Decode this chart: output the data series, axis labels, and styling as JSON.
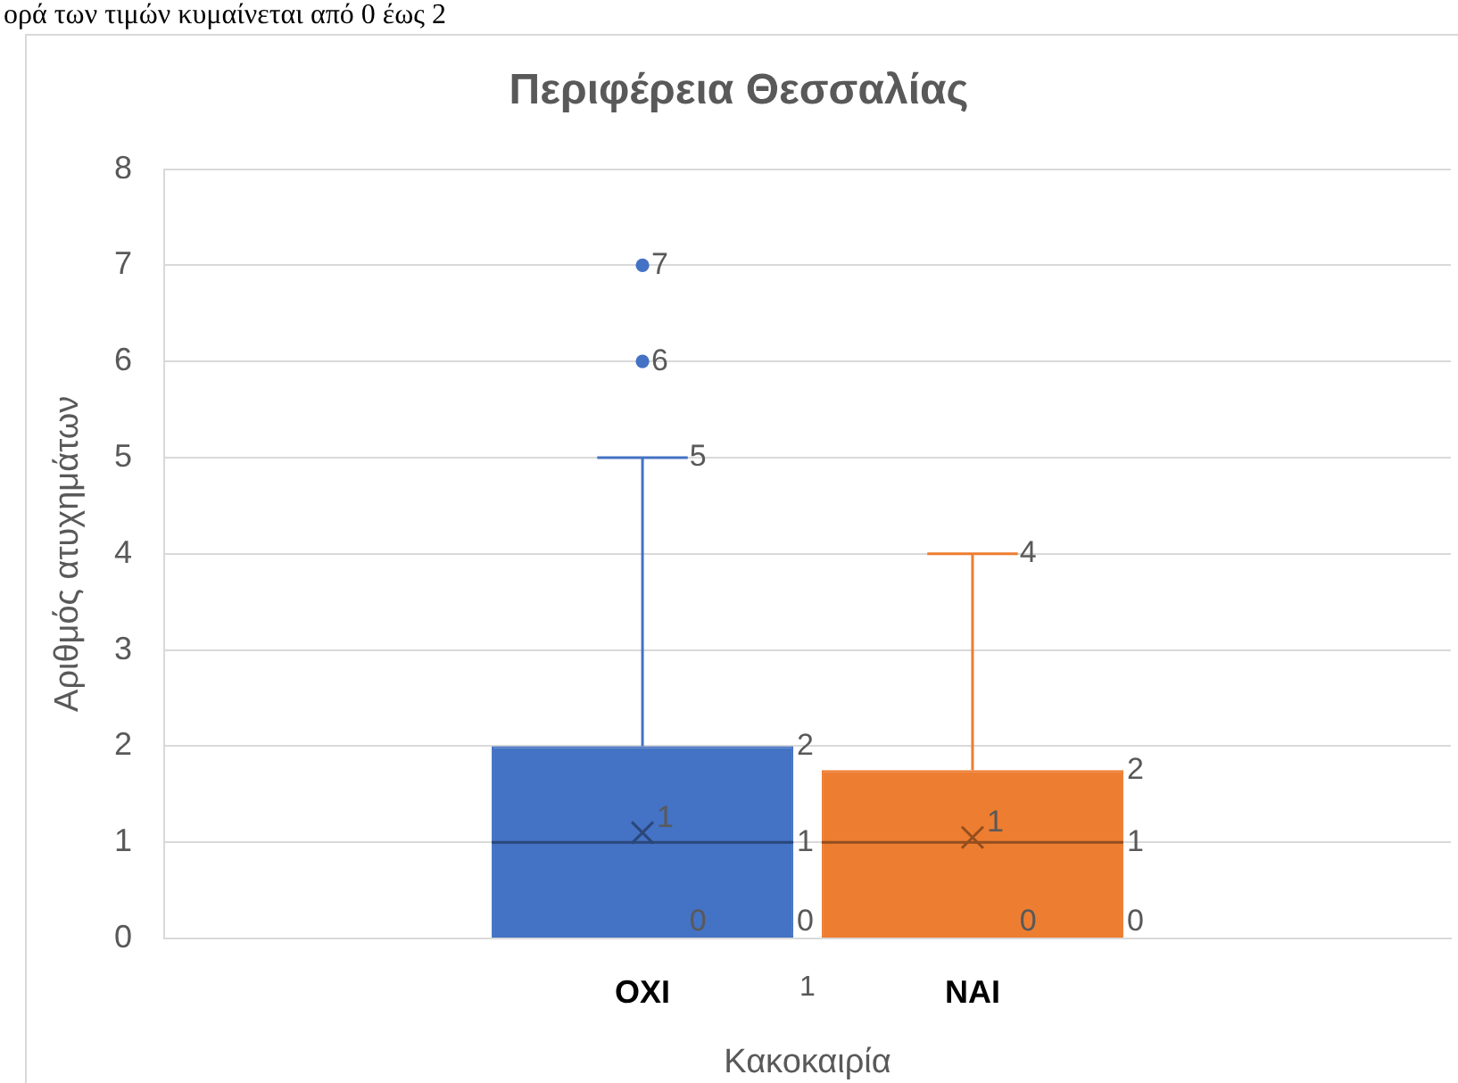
{
  "chart_data": {
    "type": "box",
    "title": "Περιφέρεια Θεσσαλίας",
    "xlabel": "Κακοκαιρία",
    "ylabel": "Αριθμός ατυχημάτων",
    "categories": [
      "1"
    ],
    "series": [
      {
        "name": "ΟΧΙ",
        "color": "#4472c4",
        "boxes": [
          {
            "low": 0,
            "q1": 0,
            "median": 1,
            "q3": 2,
            "high": 5,
            "mean": 1.1,
            "outliers": [
              6,
              7
            ]
          }
        ],
        "value_labels": [
          {
            "low": "0",
            "q1": "0",
            "median": "1",
            "q3": "2",
            "high": "5",
            "mean": "1",
            "outliers": [
              "6",
              "7"
            ]
          }
        ]
      },
      {
        "name": "ΝΑΙ",
        "color": "#ed7d31",
        "boxes": [
          {
            "low": 0,
            "q1": 0,
            "median": 1,
            "q3": 1.75,
            "high": 4,
            "mean": 1.05
          }
        ],
        "value_labels": [
          {
            "low": "0",
            "q1": "0",
            "median": "1",
            "q3": "2",
            "high": "4",
            "mean": "1"
          }
        ]
      }
    ],
    "ylim": [
      0,
      8
    ],
    "yticks": [
      0,
      1,
      2,
      3,
      4,
      5,
      6,
      7,
      8
    ],
    "grid": "y",
    "legend": "bottom",
    "annotations": [
      "ορά των τιμών κυμαίνεται από 0 έως 2"
    ]
  }
}
